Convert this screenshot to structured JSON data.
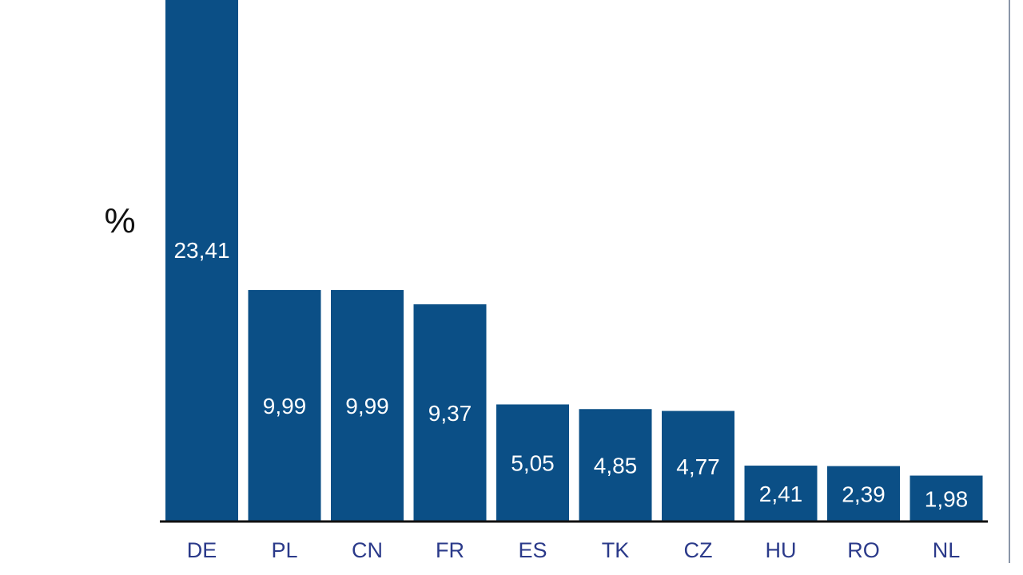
{
  "chart_data": {
    "type": "bar",
    "title": "",
    "xlabel": "",
    "ylabel": "%",
    "categories": [
      "DE",
      "PL",
      "CN",
      "FR",
      "ES",
      "TK",
      "CZ",
      "HU",
      "RO",
      "NL"
    ],
    "values": [
      23.41,
      9.99,
      9.99,
      9.37,
      5.05,
      4.85,
      4.77,
      2.41,
      2.39,
      1.98
    ],
    "value_labels": [
      "23,41",
      "9,99",
      "9,99",
      "9,37",
      "5,05",
      "4,85",
      "4,77",
      "2,41",
      "2,39",
      "1,98"
    ],
    "ylim": [
      0,
      22.5
    ],
    "grid": false,
    "legend": "none"
  },
  "colors": {
    "bar": "#0b4f86",
    "axis": "#111111",
    "category_text": "#2b3a8a",
    "frame": "#8a96a8"
  }
}
